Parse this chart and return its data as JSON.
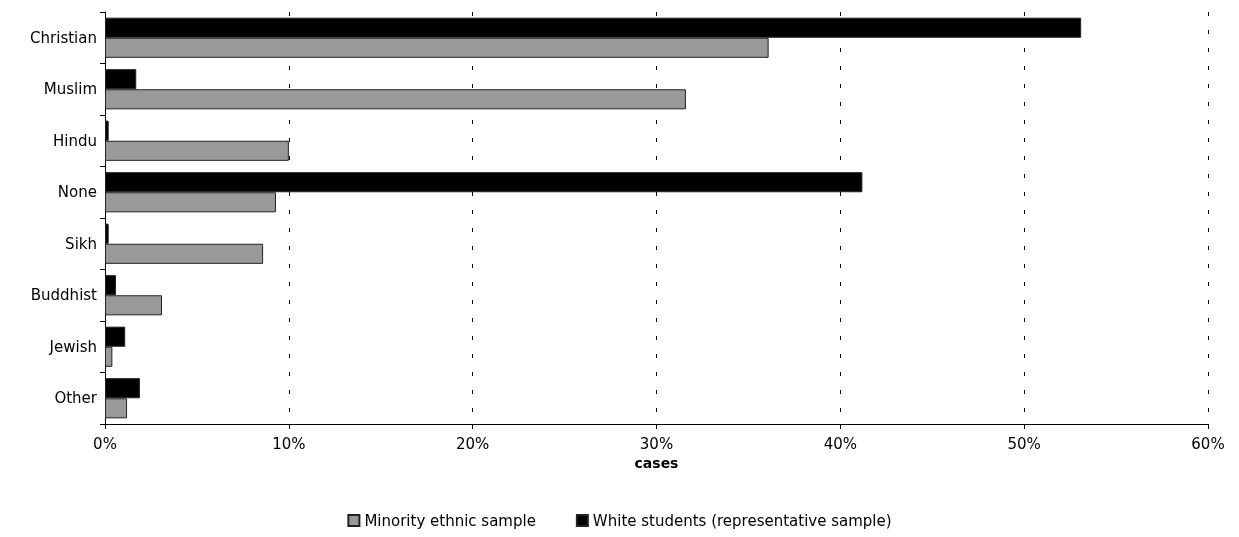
{
  "chart_data": {
    "type": "bar",
    "orientation": "horizontal",
    "xlabel": "cases",
    "categories": [
      "Christian",
      "Muslim",
      "Hindu",
      "None",
      "Sikh",
      "Buddhist",
      "Jewish",
      "Other"
    ],
    "series": [
      {
        "name": "Minority ethnic sample",
        "color": "#999999",
        "values": [
          36.1,
          31.6,
          10.0,
          9.3,
          8.6,
          3.1,
          0.4,
          1.2
        ]
      },
      {
        "name": "White students (representative sample)",
        "color": "#000000",
        "values": [
          53.1,
          1.7,
          0.2,
          41.2,
          0.2,
          0.6,
          1.1,
          1.9
        ]
      }
    ],
    "xlim": [
      0,
      60
    ],
    "xticks": [
      {
        "value": 0,
        "label": "0%"
      },
      {
        "value": 10,
        "label": "10%"
      },
      {
        "value": 20,
        "label": "20%"
      },
      {
        "value": 30,
        "label": "30%"
      },
      {
        "value": 40,
        "label": "40%"
      },
      {
        "value": 50,
        "label": "50%"
      },
      {
        "value": 60,
        "label": "60%"
      }
    ],
    "grid": "x",
    "legend": "bottom"
  }
}
